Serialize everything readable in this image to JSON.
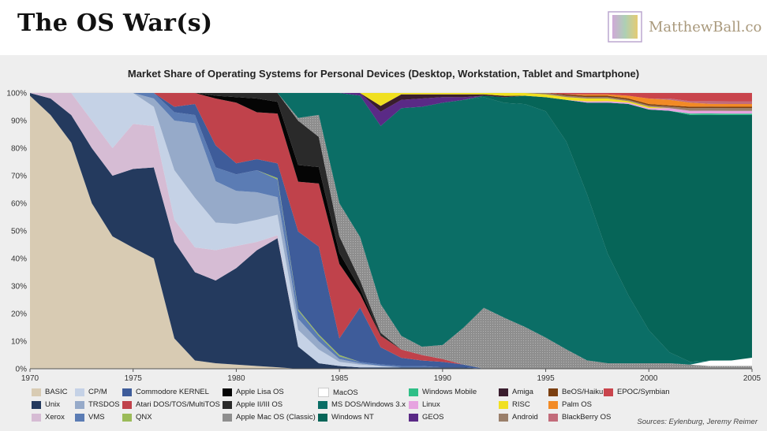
{
  "header": {
    "title": "The OS War(s)",
    "logo_text": "MatthewBall.co"
  },
  "source": "Sources: Eylenburg, Jeremy Reimer",
  "chart_data": {
    "type": "area",
    "stacked": true,
    "normalized": true,
    "title": "Market Share of Operating Systems for Personal Devices (Desktop, Workstation, Tablet and Smartphone)",
    "xlabel": "",
    "ylabel": "",
    "xlim": [
      1970,
      2005
    ],
    "ylim": [
      0,
      100
    ],
    "y_unit": "%",
    "x_ticks": [
      1970,
      1975,
      1980,
      1985,
      1990,
      1995,
      2000,
      2005
    ],
    "y_ticks": [
      "0%",
      "10%",
      "20%",
      "30%",
      "40%",
      "50%",
      "60%",
      "70%",
      "80%",
      "90%",
      "100%"
    ],
    "grid": true,
    "legend_position": "bottom",
    "x": [
      1970,
      1971,
      1972,
      1973,
      1974,
      1975,
      1976,
      1977,
      1978,
      1979,
      1980,
      1981,
      1982,
      1983,
      1984,
      1985,
      1986,
      1987,
      1988,
      1989,
      1990,
      1991,
      1992,
      1993,
      1994,
      1995,
      1996,
      1997,
      1998,
      1999,
      2000,
      2001,
      2002,
      2003,
      2004,
      2005
    ],
    "series": [
      {
        "name": "BASIC",
        "color": "#d8cbb3",
        "values": [
          99,
          92,
          82,
          60,
          48,
          43,
          40,
          11,
          3,
          2,
          1.5,
          1,
          0.5,
          0,
          0,
          0,
          0,
          0,
          0,
          0,
          0,
          0,
          0,
          0,
          0,
          0,
          0,
          0,
          0,
          0,
          0,
          0,
          0,
          0,
          0,
          0
        ]
      },
      {
        "name": "Unix",
        "color": "#243a5e",
        "values": [
          1,
          6,
          10,
          20,
          22,
          28,
          33,
          35,
          32,
          30,
          35,
          42,
          44,
          8,
          2,
          1,
          0.5,
          0.5,
          0.5,
          0.5,
          0.5,
          0.5,
          0,
          0,
          0,
          0,
          0,
          0,
          0,
          0,
          0,
          0,
          0,
          0,
          0,
          0
        ]
      },
      {
        "name": "Xerox",
        "color": "#d6bcd4",
        "values": [
          0,
          2,
          8,
          10,
          10,
          16,
          15,
          8,
          9,
          11,
          8,
          3,
          1,
          0,
          0,
          0,
          0,
          0,
          0,
          0,
          0,
          0,
          0,
          0,
          0,
          0,
          0,
          0,
          0,
          0,
          0,
          0,
          0,
          0,
          0,
          0
        ]
      },
      {
        "name": "CP/M",
        "color": "#c5d2e6",
        "values": [
          0,
          0,
          0,
          10,
          20,
          11,
          7,
          18,
          18,
          10,
          8,
          8,
          7,
          6,
          5,
          1.5,
          1,
          0.5,
          0,
          0,
          0,
          0,
          0,
          0,
          0,
          0,
          0,
          0,
          0,
          0,
          0,
          0,
          0,
          0,
          0,
          0
        ]
      },
      {
        "name": "TRSDOS",
        "color": "#96aac9",
        "values": [
          0,
          0,
          0,
          0,
          0,
          0,
          3,
          18,
          27,
          15,
          12,
          10,
          6,
          4,
          3,
          1,
          0.5,
          0,
          0,
          0,
          0,
          0,
          0,
          0,
          0,
          0,
          0,
          0,
          0,
          0,
          0,
          0,
          0,
          0,
          0,
          0
        ]
      },
      {
        "name": "VMS",
        "color": "#5b7cb4",
        "values": [
          0,
          0,
          0,
          0,
          0,
          0,
          2,
          3,
          3,
          5,
          6,
          8,
          6,
          3,
          2,
          1,
          0.5,
          0.5,
          0.5,
          0.5,
          0,
          0,
          0,
          0,
          0,
          0,
          0,
          0,
          0,
          0,
          0,
          0,
          0,
          0,
          0,
          0
        ]
      },
      {
        "name": "QNX",
        "color": "#9bbb59",
        "values": [
          0,
          0,
          0,
          0,
          0,
          0,
          0,
          0,
          0,
          0,
          0,
          0,
          0.5,
          0.5,
          0.5,
          0.5,
          0,
          0,
          0,
          0,
          0,
          0,
          0,
          0,
          0,
          0,
          0,
          0,
          0,
          0,
          0,
          0,
          0,
          0,
          0,
          0
        ]
      },
      {
        "name": "Commodore KERNEL",
        "color": "#3e5c9a",
        "values": [
          0,
          0,
          0,
          0,
          0,
          0,
          0,
          2,
          4,
          8,
          4,
          4,
          5,
          28,
          32,
          6,
          20,
          6,
          3,
          2,
          2,
          1,
          0,
          0,
          0,
          0,
          0,
          0,
          0,
          0,
          0,
          0,
          0,
          0,
          0,
          0
        ]
      },
      {
        "name": "Atari DOS/TOS/MultiTOS",
        "color": "#c0424b",
        "values": [
          0,
          0,
          0,
          0,
          0,
          0,
          0,
          5,
          4,
          17,
          22,
          17,
          17,
          18,
          23,
          27,
          5,
          4,
          3,
          2,
          1,
          0,
          0,
          0,
          0,
          0,
          0,
          0,
          0,
          0,
          0,
          0,
          0,
          0,
          0,
          0
        ]
      },
      {
        "name": "Apple Lisa OS",
        "color": "#050505",
        "values": [
          0,
          0,
          0,
          0,
          0,
          0,
          0,
          0,
          0,
          1,
          2,
          5,
          4,
          6,
          6,
          4,
          2,
          0,
          0,
          0,
          0,
          0,
          0,
          0,
          0,
          0,
          0,
          0,
          0,
          0,
          0,
          0,
          0,
          0,
          0,
          0
        ]
      },
      {
        "name": "Apple II/III OS",
        "color": "#2a2a2a",
        "values": [
          0,
          0,
          0,
          0,
          0,
          0,
          0,
          0,
          0,
          1,
          1.5,
          2,
          3,
          16,
          11,
          6,
          3,
          1,
          0,
          0,
          0,
          0,
          0,
          0,
          0,
          0,
          0,
          0,
          0,
          0,
          0,
          0,
          0,
          0,
          0,
          0
        ]
      },
      {
        "name": "Apple Mac OS (Classic)",
        "color": "#8e8e8e",
        "values": [
          0,
          0,
          0,
          0,
          0,
          0,
          0,
          0,
          0,
          0,
          0,
          0,
          0,
          1,
          8,
          12,
          16,
          10,
          5,
          3,
          5,
          13,
          22,
          18,
          15,
          11,
          7,
          3,
          2,
          2,
          2,
          2,
          1.5,
          1,
          1,
          1
        ]
      },
      {
        "name": "MacOS",
        "color": "#ffffff",
        "values": [
          0,
          0,
          0,
          0,
          0,
          0,
          0,
          0,
          0,
          0,
          0,
          0,
          0,
          0,
          0,
          0,
          0,
          0,
          0,
          0,
          0,
          0,
          0,
          0,
          0,
          0,
          0,
          0,
          0,
          0,
          0,
          0,
          0,
          2,
          2,
          3
        ]
      },
      {
        "name": "MS DOS/Windows 3.x",
        "color": "#0b6e66",
        "values": [
          0,
          0,
          0,
          0,
          0,
          0,
          0,
          0,
          0,
          0,
          0,
          0,
          0,
          9,
          8,
          40,
          52,
          62,
          83,
          87,
          87,
          81,
          76,
          76,
          80,
          80,
          75,
          60,
          40,
          25,
          12,
          4,
          1,
          0,
          0,
          0
        ]
      },
      {
        "name": "Windows NT",
        "color": "#066558",
        "values": [
          0,
          0,
          0,
          0,
          0,
          0,
          0,
          0,
          0,
          0,
          0,
          0,
          0,
          0,
          0,
          0,
          0,
          0,
          0,
          0,
          0,
          0,
          0.5,
          2,
          3,
          5,
          15,
          33,
          55,
          70,
          80,
          88,
          90,
          90,
          89,
          88
        ]
      },
      {
        "name": "Windows Mobile",
        "color": "#2fbf87",
        "values": [
          0,
          0,
          0,
          0,
          0,
          0,
          0,
          0,
          0,
          0,
          0,
          0,
          0,
          0,
          0,
          0,
          0,
          0,
          0,
          0,
          0,
          0,
          0,
          0,
          0,
          0,
          0,
          0,
          0,
          0,
          0,
          0,
          0.5,
          0.5,
          0.5,
          0.5
        ]
      },
      {
        "name": "Linux",
        "color": "#e6a3e0",
        "values": [
          0,
          0,
          0,
          0,
          0,
          0,
          0,
          0,
          0,
          0,
          0,
          0,
          0,
          0,
          0,
          0,
          0,
          0,
          0,
          0,
          0,
          0,
          0,
          0,
          0,
          0,
          0,
          0.5,
          0.5,
          0.5,
          0.5,
          1,
          1,
          1,
          1,
          1
        ]
      },
      {
        "name": "GEOS",
        "color": "#5a2a86",
        "values": [
          0,
          0,
          0,
          0,
          0,
          0,
          0,
          0,
          0,
          0,
          0,
          0,
          0,
          0,
          0,
          0,
          1,
          5,
          3,
          3,
          2,
          1,
          0,
          0,
          0,
          0,
          0,
          0,
          0,
          0,
          0,
          0,
          0,
          0,
          0,
          0
        ]
      },
      {
        "name": "Amiga",
        "color": "#3a1d2e",
        "values": [
          0,
          0,
          0,
          0,
          0,
          0,
          0,
          0,
          0,
          0,
          0,
          0,
          0,
          0,
          0,
          0,
          0,
          2,
          2,
          1.5,
          1,
          1,
          0.5,
          0.5,
          0,
          0,
          0,
          0,
          0,
          0,
          0,
          0,
          0,
          0,
          0,
          0
        ]
      },
      {
        "name": "RISC",
        "color": "#f0e020",
        "values": [
          0,
          0,
          0,
          0,
          0,
          0,
          0,
          0,
          0,
          0,
          0,
          0,
          0,
          0,
          0,
          0,
          0,
          4.5,
          0.5,
          0.5,
          0.5,
          0.5,
          0.5,
          1,
          1,
          1,
          1,
          1,
          1,
          0.5,
          0.5,
          0,
          0,
          0,
          0,
          0
        ]
      },
      {
        "name": "Android",
        "color": "#9a7f6a",
        "values": [
          0,
          0,
          0,
          0,
          0,
          0,
          0,
          0,
          0,
          0,
          0,
          0,
          0,
          0,
          0,
          0,
          0,
          0,
          0,
          0,
          0,
          0,
          0,
          0,
          0,
          0.5,
          0.5,
          0.5,
          0.5,
          0.5,
          0.5,
          0.5,
          1,
          1,
          1,
          1
        ]
      },
      {
        "name": "BeOS/Haiku",
        "color": "#7b3f10",
        "values": [
          0,
          0,
          0,
          0,
          0,
          0,
          0,
          0,
          0,
          0,
          0,
          0,
          0,
          0,
          0,
          0,
          0,
          0,
          0,
          0,
          0,
          0,
          0,
          0,
          0,
          0,
          0.5,
          0.5,
          0.5,
          0.5,
          0.5,
          0.5,
          0.5,
          0.5,
          0.5,
          0.5
        ]
      },
      {
        "name": "Palm OS",
        "color": "#f28a25",
        "values": [
          0,
          0,
          0,
          0,
          0,
          0,
          0,
          0,
          0,
          0,
          0,
          0,
          0,
          0,
          0,
          0,
          0,
          0,
          0,
          0,
          0,
          0,
          0,
          0,
          0,
          0,
          0,
          0.5,
          0.5,
          1,
          2,
          2,
          1.5,
          1,
          1,
          1
        ]
      },
      {
        "name": "BlackBerry OS",
        "color": "#c26b7a",
        "values": [
          0,
          0,
          0,
          0,
          0,
          0,
          0,
          0,
          0,
          0,
          0,
          0,
          0,
          0,
          0,
          0,
          0,
          0,
          0,
          0,
          0,
          0,
          0,
          0,
          0,
          0,
          0,
          0,
          0,
          0,
          0,
          0.5,
          0.5,
          1,
          1,
          1
        ]
      },
      {
        "name": "EPOC/Symbian",
        "color": "#c9444c",
        "values": [
          0,
          0,
          0,
          0,
          0,
          0,
          0,
          0,
          0,
          0,
          0,
          0,
          0,
          0,
          0,
          0,
          0,
          0,
          0,
          0,
          0,
          0,
          0,
          0,
          0,
          0,
          0.5,
          0.5,
          0.5,
          1,
          2,
          2,
          3,
          3,
          3,
          3
        ]
      }
    ],
    "legend": [
      {
        "name": "BASIC",
        "color": "#d8cbb3"
      },
      {
        "name": "CP/M",
        "color": "#c5d2e6"
      },
      {
        "name": "Commodore KERNEL",
        "color": "#3e5c9a"
      },
      {
        "name": "Apple Lisa OS",
        "color": "#050505"
      },
      {
        "name": "MacOS",
        "color": "#ffffff"
      },
      {
        "name": "Windows Mobile",
        "color": "#2fbf87"
      },
      {
        "name": "Amiga",
        "color": "#3a1d2e"
      },
      {
        "name": "BeOS/Haiku",
        "color": "#7b3f10"
      },
      {
        "name": "EPOC/Symbian",
        "color": "#c9444c"
      },
      {
        "name": "Unix",
        "color": "#243a5e"
      },
      {
        "name": "TRSDOS",
        "color": "#96aac9"
      },
      {
        "name": "Atari DOS/TOS/MultiTOS",
        "color": "#c0424b"
      },
      {
        "name": "Apple II/III OS",
        "color": "#2a2a2a"
      },
      {
        "name": "MS DOS/Windows 3.x",
        "color": "#0b6e66"
      },
      {
        "name": "Linux",
        "color": "#e6a3e0"
      },
      {
        "name": "RISC",
        "color": "#f0e020"
      },
      {
        "name": "Palm OS",
        "color": "#f28a25"
      },
      {
        "name": "Xerox",
        "color": "#d6bcd4"
      },
      {
        "name": "VMS",
        "color": "#5b7cb4"
      },
      {
        "name": "QNX",
        "color": "#9bbb59"
      },
      {
        "name": "Apple Mac OS (Classic)",
        "color": "#8e8e8e"
      },
      {
        "name": "Windows NT",
        "color": "#066558"
      },
      {
        "name": "GEOS",
        "color": "#5a2a86"
      },
      {
        "name": "Android",
        "color": "#9a7f6a"
      },
      {
        "name": "BlackBerry OS",
        "color": "#c26b7a"
      }
    ]
  }
}
